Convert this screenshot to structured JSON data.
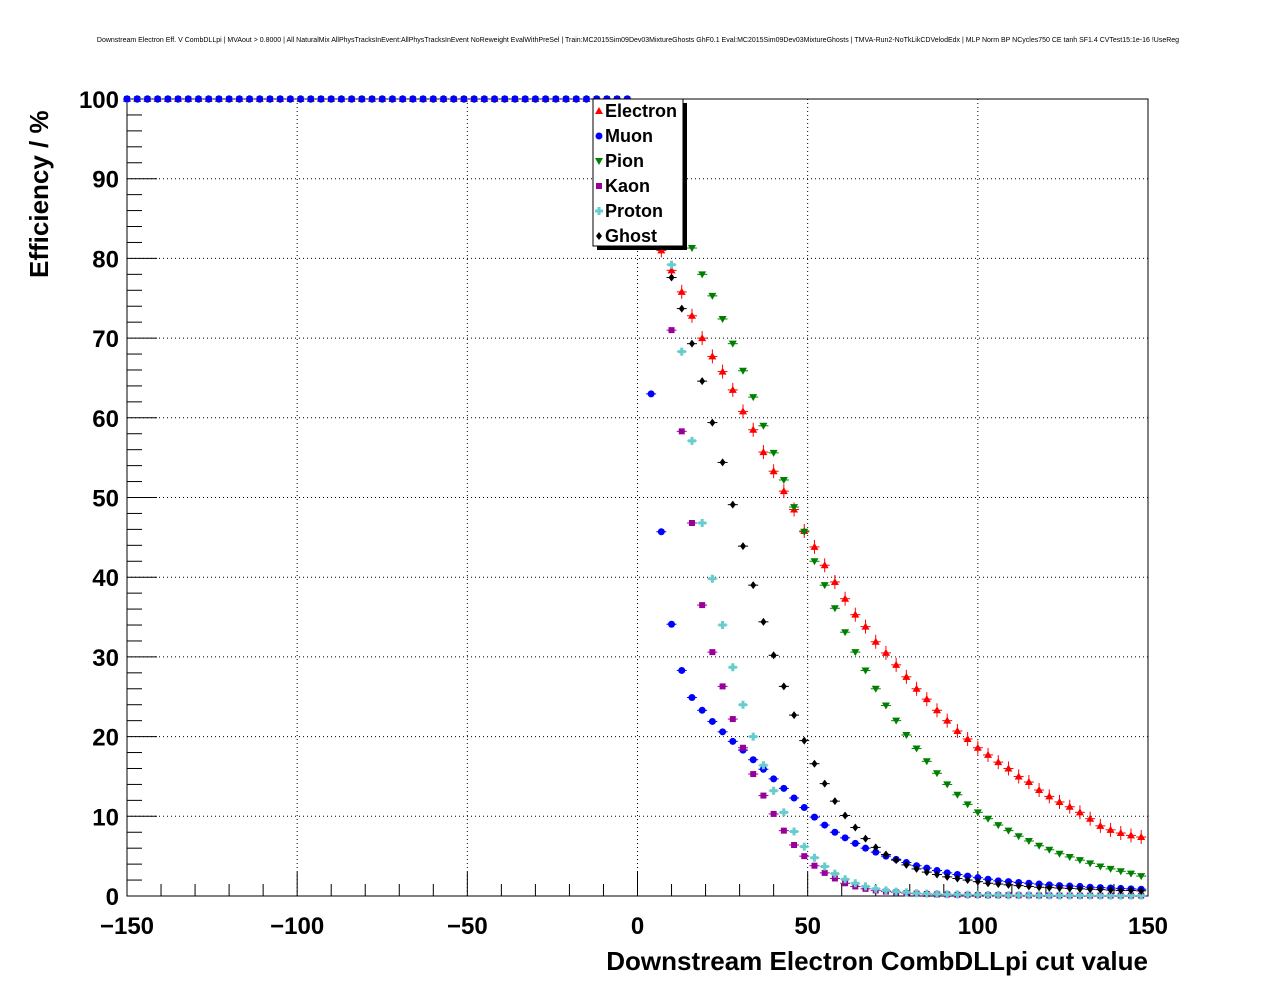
{
  "chart_data": {
    "type": "scatter",
    "title": "Downstream Electron Eff. V CombDLLpi | MVAout > 0.8000 | All NaturalMix AllPhysTracksInEvent:AllPhysTracksInEvent NoReweight EvalWithPreSel | Train:MC2015Sim09Dev03MixtureGhosts GhF0.1 Eval:MC2015Sim09Dev03MixtureGhosts | TMVA-Run2-NoTkLikCDVelodEdx | MLP Norm BP NCycles750 CE tanh SF1.4 CVTest15:1e-16 !UseReg",
    "xlabel": "Downstream Electron CombDLLpi cut value",
    "ylabel": "Efficiency / %",
    "xlim": [
      -150,
      150
    ],
    "ylim": [
      0,
      100
    ],
    "grid": true,
    "legend_position": "top-center",
    "x_ticks": [
      -150,
      -100,
      -50,
      0,
      50,
      100,
      150
    ],
    "x_tick_labels": [
      "−150",
      "−100",
      "−50",
      "0",
      "50",
      "100",
      "150"
    ],
    "y_ticks": [
      0,
      10,
      20,
      30,
      40,
      50,
      60,
      70,
      80,
      90,
      100
    ],
    "y_tick_labels": [
      "0",
      "10",
      "20",
      "30",
      "40",
      "50",
      "60",
      "70",
      "80",
      "90",
      "100"
    ],
    "series": [
      {
        "name": "Electron",
        "marker": "triangle-up",
        "color": "#ff0000",
        "x": [
          -1,
          1,
          4,
          7,
          10,
          13,
          16,
          19,
          22,
          25,
          28,
          31,
          34,
          37,
          40,
          43,
          46,
          49,
          52,
          55,
          58,
          61,
          64,
          67,
          70,
          73,
          76,
          79,
          82,
          85,
          88,
          91,
          94,
          97,
          100,
          103,
          106,
          109,
          112,
          115,
          118,
          121,
          124,
          127,
          130,
          133,
          136,
          139,
          142,
          145,
          148
        ],
        "values": [
          99,
          95,
          87,
          81,
          78.5,
          75.8,
          72.8,
          70,
          67.7,
          65.8,
          63.5,
          60.8,
          58.5,
          55.7,
          53.3,
          50.8,
          48.5,
          45.8,
          43.8,
          41.5,
          39.4,
          37.3,
          35.3,
          33.8,
          31.9,
          30.5,
          29,
          27.5,
          26,
          24.7,
          23.3,
          22,
          20.7,
          19.7,
          18.6,
          17.7,
          16.8,
          16,
          15,
          14.3,
          13.3,
          12.5,
          11.8,
          11.2,
          10.5,
          9.7,
          8.8,
          8.3,
          7.9,
          7.6,
          7.4
        ]
      },
      {
        "name": "Muon",
        "marker": "circle",
        "color": "#0000ff",
        "x": [
          4,
          7,
          10,
          13,
          16,
          19,
          22,
          25,
          28,
          31,
          34,
          37,
          40,
          43,
          46,
          49,
          52,
          55,
          58,
          61,
          64,
          67,
          70,
          73,
          76,
          79,
          82,
          85,
          88,
          91,
          94,
          97,
          100,
          103,
          106,
          109,
          112,
          115,
          118,
          121,
          124,
          127,
          130,
          133,
          136,
          139,
          142,
          145,
          148
        ],
        "values": [
          63,
          45.7,
          34.1,
          28.3,
          24.9,
          23.3,
          21.9,
          20.6,
          19.4,
          18.3,
          17.1,
          15.9,
          14.7,
          13.5,
          12.3,
          11.1,
          9.9,
          8.9,
          8,
          7.3,
          6.6,
          6,
          5.5,
          5,
          4.6,
          4.2,
          3.8,
          3.5,
          3.2,
          2.9,
          2.7,
          2.5,
          2.3,
          2.1,
          1.9,
          1.8,
          1.7,
          1.6,
          1.5,
          1.4,
          1.3,
          1.25,
          1.2,
          1.1,
          1.05,
          1,
          0.95,
          0.9,
          0.85
        ]
      },
      {
        "name": "Pion",
        "marker": "triangle-down",
        "color": "#008000",
        "x": [
          -1,
          1,
          4,
          7,
          10,
          13,
          16,
          19,
          22,
          25,
          28,
          31,
          34,
          37,
          40,
          43,
          46,
          49,
          52,
          55,
          58,
          61,
          64,
          67,
          70,
          73,
          76,
          79,
          82,
          85,
          88,
          91,
          94,
          97,
          100,
          103,
          106,
          109,
          112,
          115,
          118,
          121,
          124,
          127,
          130,
          133,
          136,
          139,
          142,
          145,
          148
        ],
        "values": [
          99,
          96,
          92,
          89,
          87,
          84.5,
          81.3,
          78,
          75.3,
          72.4,
          69.3,
          65.9,
          62.6,
          59,
          55.6,
          52.2,
          48.8,
          45.7,
          42,
          39,
          36.1,
          33.1,
          30.6,
          28.3,
          26,
          23.9,
          22,
          20.2,
          18.5,
          16.9,
          15.4,
          14,
          12.7,
          11.5,
          10.5,
          9.7,
          8.9,
          8.2,
          7.5,
          6.9,
          6.3,
          5.8,
          5.3,
          4.9,
          4.5,
          4.1,
          3.7,
          3.4,
          3.1,
          2.8,
          2.5
        ]
      },
      {
        "name": "Kaon",
        "marker": "square",
        "color": "#990099",
        "x": [
          10,
          13,
          16,
          19,
          22,
          25,
          28,
          31,
          34,
          37,
          40,
          43,
          46,
          49,
          52,
          55,
          58,
          61,
          64,
          67,
          70,
          73,
          76,
          79,
          82,
          85,
          88,
          91,
          94,
          97,
          100,
          103,
          106,
          109,
          112,
          115,
          118,
          121,
          124,
          127,
          130,
          133,
          136,
          139,
          142,
          145,
          148
        ],
        "values": [
          71,
          58.3,
          46.8,
          36.5,
          30.6,
          26.3,
          22.2,
          18.6,
          15.3,
          12.6,
          10.3,
          8.2,
          6.4,
          5,
          3.8,
          2.9,
          2.2,
          1.6,
          1.2,
          0.9,
          0.7,
          0.55,
          0.45,
          0.35,
          0.3,
          0.25,
          0.2,
          0.2,
          0.15,
          0.15,
          0.12,
          0.1,
          0.1,
          0.1,
          0.08,
          0.08,
          0.07,
          0.07,
          0.06,
          0.06,
          0.05,
          0.05,
          0.05,
          0.05,
          0.05,
          0.05,
          0.05
        ]
      },
      {
        "name": "Proton",
        "marker": "cross",
        "color": "#66cccc",
        "x": [
          10,
          13,
          16,
          19,
          22,
          25,
          28,
          31,
          34,
          37,
          40,
          43,
          46,
          49,
          52,
          55,
          58,
          61,
          64,
          67,
          70,
          73,
          76,
          79,
          82,
          85,
          88,
          91,
          94,
          97,
          100,
          103,
          106,
          109,
          112,
          115,
          118,
          121,
          124,
          127,
          130,
          133,
          136,
          139,
          142,
          145,
          148
        ],
        "values": [
          79.2,
          68.3,
          57.1,
          46.8,
          39.8,
          34,
          28.7,
          24,
          20,
          16.4,
          13.2,
          10.5,
          8.1,
          6.2,
          4.8,
          3.7,
          2.8,
          2.1,
          1.6,
          1.2,
          0.9,
          0.7,
          0.55,
          0.45,
          0.35,
          0.3,
          0.25,
          0.2,
          0.2,
          0.15,
          0.15,
          0.12,
          0.12,
          0.1,
          0.1,
          0.1,
          0.08,
          0.08,
          0.07,
          0.07,
          0.06,
          0.06,
          0.05,
          0.05,
          0.05,
          0.05,
          0.05
        ]
      },
      {
        "name": "Ghost",
        "marker": "diamond",
        "color": "#000000",
        "x": [
          10,
          13,
          16,
          19,
          22,
          25,
          28,
          31,
          34,
          37,
          40,
          43,
          46,
          49,
          52,
          55,
          58,
          61,
          64,
          67,
          70,
          73,
          76,
          79,
          82,
          85,
          88,
          91,
          94,
          97,
          100,
          103,
          106,
          109,
          112,
          115,
          118,
          121,
          124,
          127,
          130,
          133,
          136,
          139,
          142,
          145,
          148
        ],
        "values": [
          77.6,
          73.7,
          69.3,
          64.6,
          59.4,
          54.4,
          49.1,
          43.9,
          39,
          34.4,
          30.2,
          26.3,
          22.7,
          19.5,
          16.6,
          14.1,
          11.9,
          10.1,
          8.6,
          7.2,
          6.1,
          5.2,
          4.5,
          3.9,
          3.4,
          3,
          2.7,
          2.4,
          2.2,
          2,
          1.8,
          1.6,
          1.5,
          1.4,
          1.3,
          1.2,
          1.1,
          1.05,
          1,
          0.95,
          0.9,
          0.85,
          0.8,
          0.75,
          0.7,
          0.7,
          0.65
        ]
      }
    ],
    "saturated_x_start": -150,
    "saturated_x_end": -3,
    "saturated_x_step": 3,
    "saturated_value": 100
  }
}
